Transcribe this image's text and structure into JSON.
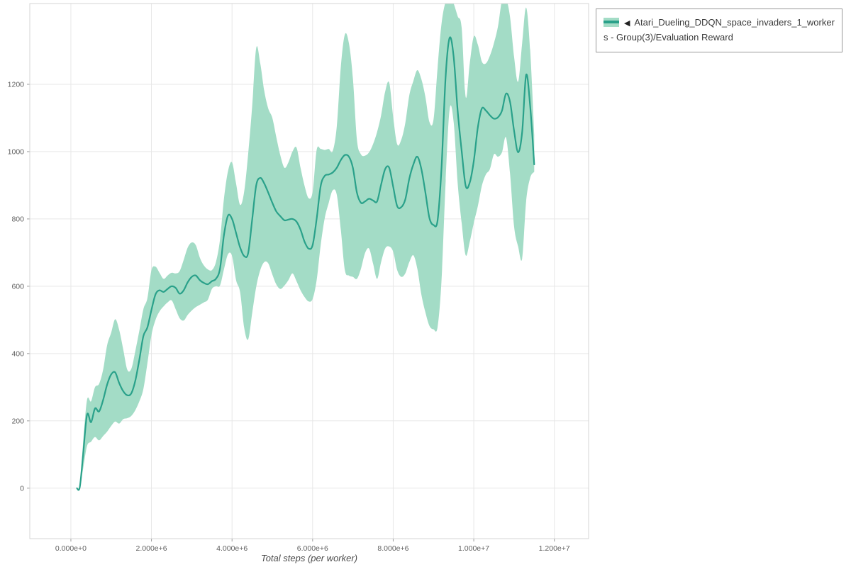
{
  "legend": {
    "collapse_icon": "◀",
    "label": "Atari_Dueling_DDQN_space_invaders_1_workers - Group(3)/Evaluation Reward",
    "border_color": "#999999"
  },
  "chart_data": {
    "type": "line",
    "title": "",
    "xlabel": "Total steps (per worker)",
    "ylabel": "",
    "grid": true,
    "legend_position": "top-right-outside",
    "xlim": [
      -1020000,
      12850000
    ],
    "ylim": [
      -150,
      1440
    ],
    "x_ticks": {
      "values": [
        0,
        2000000,
        4000000,
        6000000,
        8000000,
        10000000,
        12000000
      ],
      "labels": [
        "0.000e+0",
        "2.000e+6",
        "4.000e+6",
        "6.000e+6",
        "8.000e+6",
        "1.000e+7",
        "1.200e+7"
      ]
    },
    "y_ticks": {
      "values": [
        0,
        200,
        400,
        600,
        800,
        1000,
        1200
      ],
      "labels": [
        "0",
        "200",
        "400",
        "600",
        "800",
        "1000",
        "1200"
      ]
    },
    "colors": {
      "line": "#2aa18a",
      "band": "#a3dcc6",
      "grid": "#e7e7e7",
      "frame": "#d4d4d4",
      "tick_mark": "#9b9b9b",
      "tick_text": "#5f5f5f",
      "axis_label": "#4a4a4a"
    },
    "series": [
      {
        "name": "Atari_Dueling_DDQN_space_invaders_1_workers - Group(3)/Evaluation Reward",
        "x": [
          150000,
          220000,
          300000,
          400000,
          500000,
          600000,
          700000,
          800000,
          900000,
          1000000,
          1100000,
          1200000,
          1300000,
          1400000,
          1500000,
          1600000,
          1700000,
          1800000,
          1900000,
          2000000,
          2100000,
          2200000,
          2300000,
          2400000,
          2500000,
          2600000,
          2700000,
          2800000,
          2900000,
          3000000,
          3100000,
          3200000,
          3300000,
          3400000,
          3500000,
          3600000,
          3700000,
          3800000,
          3900000,
          4000000,
          4100000,
          4200000,
          4300000,
          4400000,
          4500000,
          4600000,
          4700000,
          4800000,
          4900000,
          5000000,
          5100000,
          5200000,
          5300000,
          5400000,
          5500000,
          5600000,
          5700000,
          5800000,
          5900000,
          6000000,
          6100000,
          6200000,
          6300000,
          6400000,
          6500000,
          6600000,
          6700000,
          6800000,
          6900000,
          7000000,
          7100000,
          7200000,
          7300000,
          7400000,
          7500000,
          7600000,
          7700000,
          7800000,
          7900000,
          8000000,
          8100000,
          8200000,
          8300000,
          8400000,
          8500000,
          8600000,
          8700000,
          8800000,
          8900000,
          9000000,
          9100000,
          9200000,
          9300000,
          9400000,
          9500000,
          9600000,
          9700000,
          9800000,
          9900000,
          10000000,
          10100000,
          10200000,
          10300000,
          10400000,
          10500000,
          10600000,
          10700000,
          10800000,
          10900000,
          11000000,
          11100000,
          11200000,
          11300000,
          11400000,
          11500000
        ],
        "mean": [
          0,
          2,
          95,
          218,
          196,
          237,
          228,
          262,
          308,
          338,
          344,
          312,
          288,
          276,
          282,
          320,
          382,
          452,
          478,
          530,
          576,
          588,
          583,
          592,
          600,
          595,
          578,
          588,
          612,
          628,
          632,
          618,
          610,
          606,
          615,
          622,
          652,
          752,
          810,
          800,
          758,
          715,
          690,
          698,
          798,
          900,
          922,
          905,
          878,
          848,
          822,
          808,
          796,
          798,
          800,
          792,
          768,
          732,
          712,
          722,
          800,
          898,
          928,
          932,
          938,
          952,
          975,
          990,
          985,
          952,
          878,
          848,
          852,
          860,
          855,
          852,
          902,
          948,
          952,
          895,
          838,
          835,
          858,
          920,
          962,
          985,
          948,
          878,
          802,
          782,
          795,
          952,
          1220,
          1338,
          1282,
          1120,
          1002,
          898,
          908,
          972,
          1072,
          1128,
          1122,
          1108,
          1098,
          1102,
          1122,
          1172,
          1148,
          1062,
          998,
          1058,
          1228,
          1135,
          962
        ],
        "lower": [
          0,
          0,
          55,
          125,
          138,
          152,
          142,
          155,
          168,
          185,
          198,
          192,
          205,
          208,
          215,
          232,
          258,
          295,
          372,
          455,
          500,
          525,
          540,
          552,
          558,
          532,
          505,
          498,
          515,
          528,
          538,
          545,
          552,
          560,
          592,
          600,
          602,
          650,
          695,
          690,
          618,
          582,
          478,
          442,
          520,
          598,
          648,
          672,
          668,
          635,
          605,
          592,
          602,
          618,
          638,
          615,
          588,
          568,
          555,
          562,
          618,
          722,
          802,
          848,
          885,
          872,
          768,
          648,
          632,
          628,
          622,
          652,
          698,
          712,
          668,
          622,
          672,
          712,
          718,
          702,
          648,
          628,
          638,
          672,
          692,
          652,
          575,
          522,
          482,
          472,
          478,
          618,
          905,
          1125,
          1088,
          905,
          788,
          692,
          732,
          788,
          838,
          898,
          932,
          948,
          992,
          985,
          998,
          1042,
          935,
          778,
          718,
          682,
          852,
          922,
          940
        ],
        "upper": [
          0,
          5,
          130,
          262,
          258,
          300,
          310,
          352,
          425,
          462,
          502,
          470,
          412,
          352,
          355,
          408,
          468,
          532,
          565,
          648,
          658,
          640,
          622,
          632,
          640,
          638,
          645,
          678,
          715,
          730,
          722,
          685,
          662,
          650,
          648,
          672,
          738,
          860,
          942,
          968,
          905,
          842,
          880,
          992,
          1135,
          1308,
          1262,
          1180,
          1128,
          1100,
          1042,
          988,
          952,
          968,
          1000,
          1012,
          952,
          898,
          862,
          880,
          1005,
          1008,
          1005,
          1008,
          1002,
          1075,
          1252,
          1348,
          1322,
          1218,
          1035,
          992,
          988,
          998,
          1022,
          1058,
          1108,
          1178,
          1205,
          1102,
          1022,
          1035,
          1085,
          1168,
          1210,
          1242,
          1215,
          1162,
          1088,
          1095,
          1248,
          1380,
          1445,
          1460,
          1440,
          1402,
          1368,
          1162,
          1262,
          1342,
          1318,
          1268,
          1262,
          1285,
          1322,
          1372,
          1450,
          1455,
          1400,
          1282,
          1208,
          1322,
          1428,
          1302,
          1050
        ]
      }
    ]
  }
}
